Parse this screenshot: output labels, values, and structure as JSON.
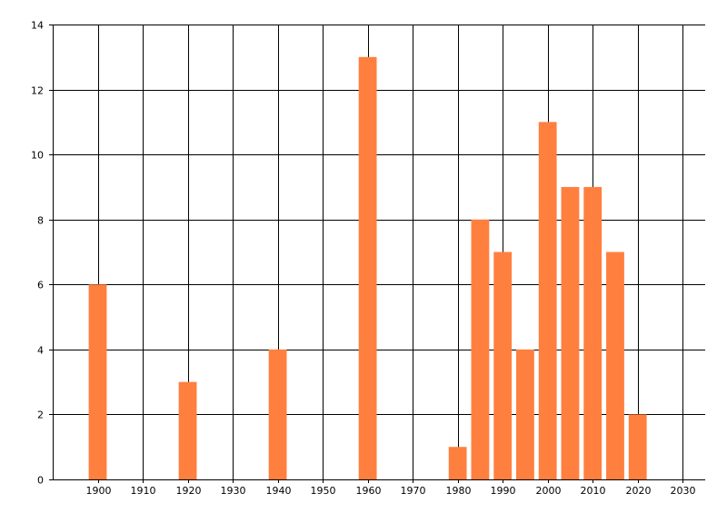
{
  "chart_data": {
    "type": "bar",
    "x": [
      1900,
      1920,
      1940,
      1960,
      1980,
      1985,
      1990,
      1995,
      2000,
      2005,
      2010,
      2015,
      2020
    ],
    "values": [
      6,
      3,
      4,
      13,
      1,
      8,
      7,
      4,
      11,
      9,
      9,
      7,
      2
    ],
    "title": "",
    "xlabel": "",
    "ylabel": "",
    "xlim": [
      1890,
      2035
    ],
    "ylim": [
      0,
      14
    ],
    "x_ticks": [
      1900,
      1910,
      1920,
      1930,
      1940,
      1950,
      1960,
      1970,
      1980,
      1990,
      2000,
      2010,
      2020,
      2030
    ],
    "y_ticks": [
      0,
      2,
      4,
      6,
      8,
      10,
      12,
      14
    ],
    "bar_width_years": 4,
    "grid": true,
    "legend": "none",
    "bar_color": "#FF7F3F",
    "grid_color": "#000000"
  }
}
